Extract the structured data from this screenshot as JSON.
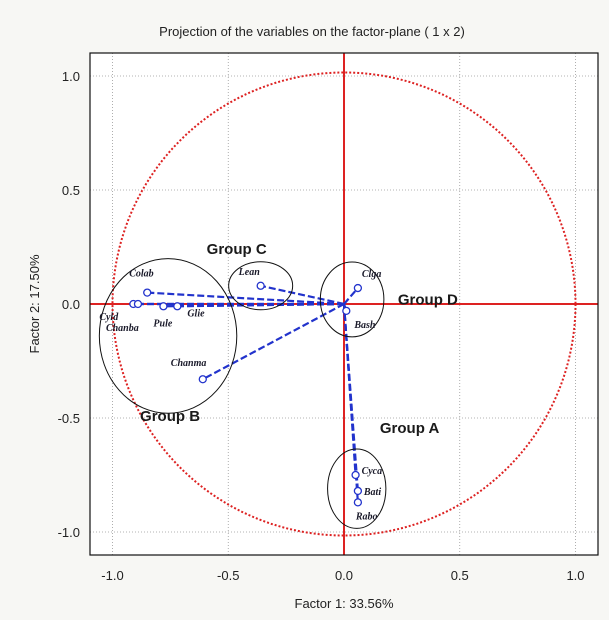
{
  "chart_data": {
    "type": "scatter",
    "title": "Projection of the variables on the factor-plane ( 1 x 2)",
    "xlabel": "Factor 1: 33.56%",
    "ylabel": "Factor 2: 17.50%",
    "xlim": [
      -1.1,
      1.1
    ],
    "ylim": [
      -1.1,
      1.1
    ],
    "xticks": [
      "-1.0",
      "-0.5",
      "0.0",
      "0.5",
      "1.0"
    ],
    "yticks": [
      "1.0",
      "0.5",
      "0.0",
      "-0.5",
      "-1.0"
    ],
    "grid": true,
    "unit_circle": true,
    "points": [
      {
        "label": "Colab",
        "x": -0.85,
        "y": 0.05
      },
      {
        "label": "Cyld",
        "x": -0.91,
        "y": 0.0
      },
      {
        "label": "Chanba",
        "x": -0.89,
        "y": 0.0
      },
      {
        "label": "Pule",
        "x": -0.78,
        "y": -0.01
      },
      {
        "label": "Glie",
        "x": -0.72,
        "y": -0.01
      },
      {
        "label": "Chanma",
        "x": -0.61,
        "y": -0.33
      },
      {
        "label": "Lean",
        "x": -0.36,
        "y": 0.08
      },
      {
        "label": "Clga",
        "x": 0.06,
        "y": 0.07
      },
      {
        "label": "Bash",
        "x": 0.01,
        "y": -0.03
      },
      {
        "label": "Cyca",
        "x": 0.05,
        "y": -0.75
      },
      {
        "label": "Bati",
        "x": 0.06,
        "y": -0.82
      },
      {
        "label": "Rabo",
        "x": 0.06,
        "y": -0.87
      }
    ],
    "groups": [
      {
        "name": "Group A",
        "members": [
          "Cyca",
          "Bati",
          "Rabo"
        ]
      },
      {
        "name": "Group B",
        "members": [
          "Colab",
          "Cyld",
          "Chanba",
          "Pule",
          "Glie",
          "Chanma"
        ]
      },
      {
        "name": "Group C",
        "members": [
          "Lean"
        ]
      },
      {
        "name": "Group D",
        "members": [
          "Clga",
          "Bash"
        ]
      }
    ],
    "colors": {
      "points": "#2233cc",
      "circle": "#dd2222",
      "axes": "#dd2222",
      "grid": "#9a9a9a"
    }
  }
}
